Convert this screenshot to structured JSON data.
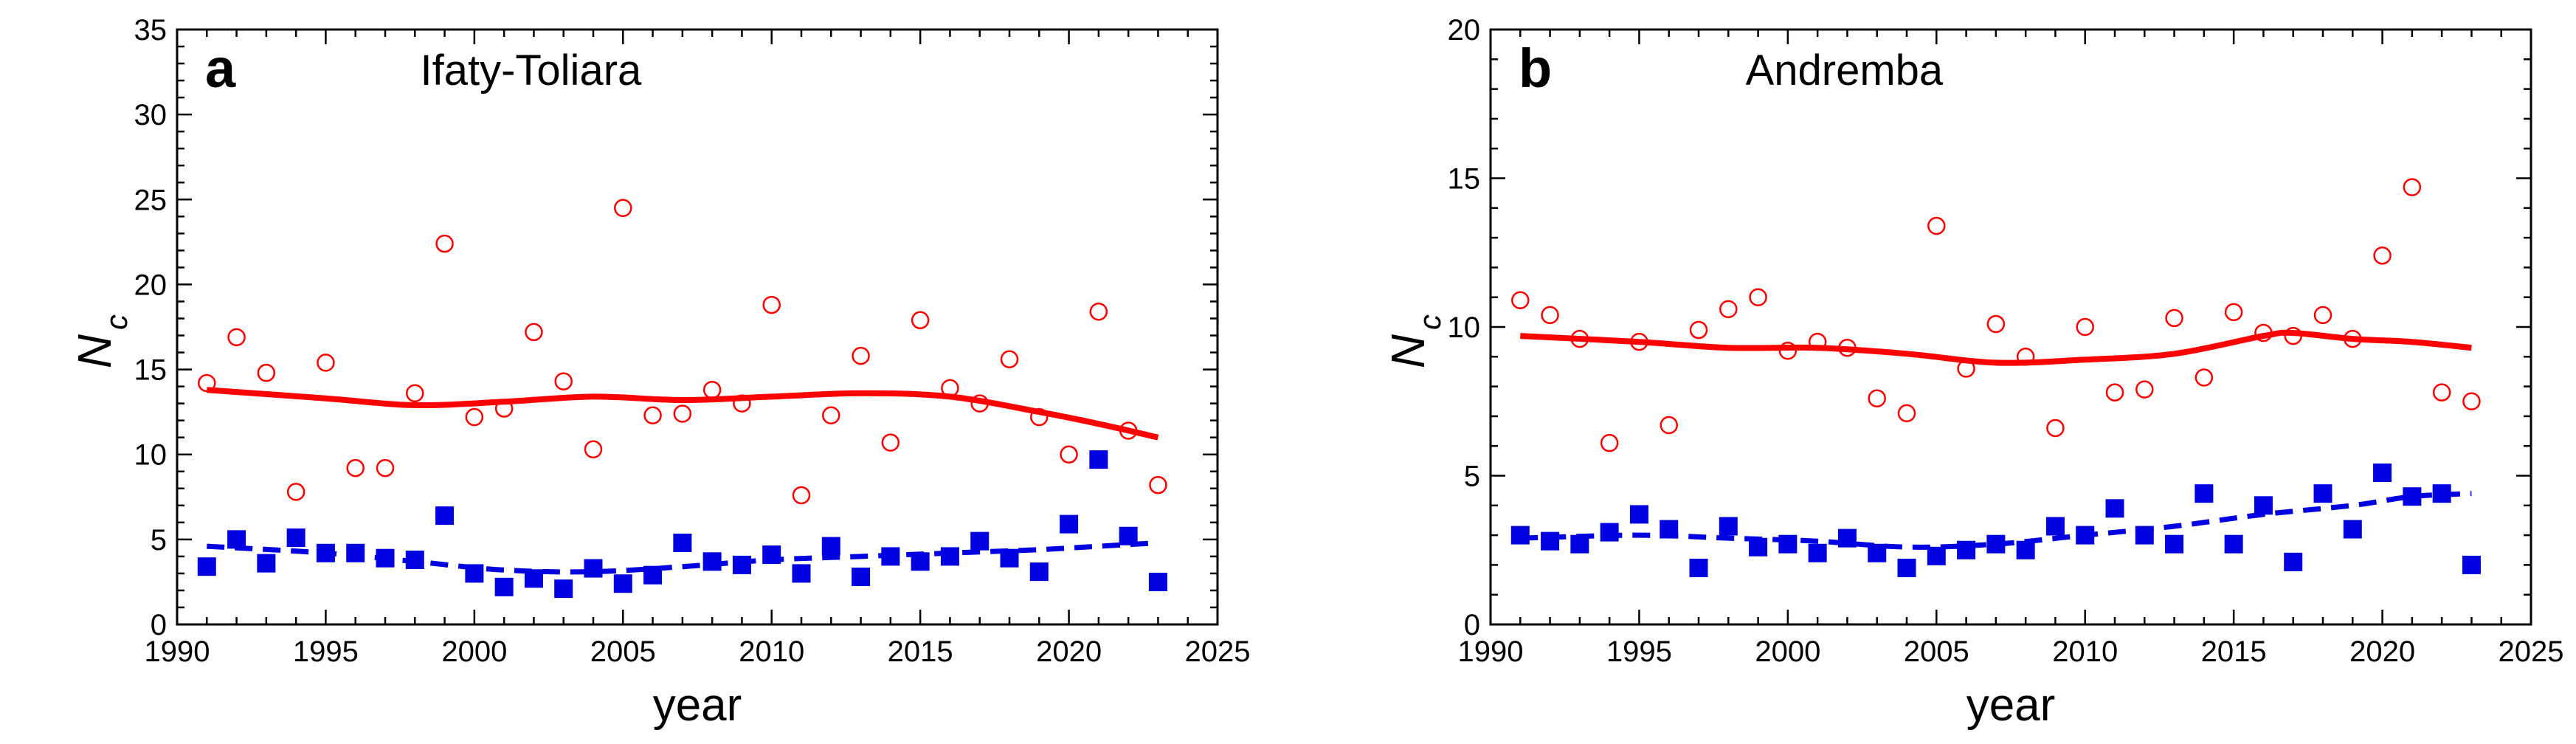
{
  "chart_data": [
    {
      "type": "scatter",
      "panel_label": "a",
      "title": "Ifaty-Toliara",
      "xlabel": "year",
      "ylabel_main": "N",
      "ylabel_sub": "c",
      "xlim": [
        1990,
        2025
      ],
      "ylim": [
        0,
        35
      ],
      "xticks": [
        1990,
        1995,
        2000,
        2005,
        2010,
        2015,
        2020,
        2025
      ],
      "yticks": [
        0,
        5,
        10,
        15,
        20,
        25,
        30,
        35
      ],
      "grid": false,
      "series": [
        {
          "marker": "open-circle",
          "color": "#ff0000",
          "x": [
            1991,
            1992,
            1993,
            1994,
            1995,
            1996,
            1997,
            1998,
            1999,
            2000,
            2001,
            2002,
            2003,
            2004,
            2005,
            2006,
            2007,
            2008,
            2009,
            2010,
            2011,
            2012,
            2013,
            2014,
            2015,
            2016,
            2017,
            2018,
            2019,
            2020,
            2021,
            2022,
            2023
          ],
          "y": [
            14.2,
            16.9,
            14.8,
            7.8,
            15.4,
            9.2,
            9.2,
            13.6,
            22.4,
            12.2,
            12.7,
            17.2,
            14.3,
            10.3,
            24.5,
            12.3,
            12.4,
            13.8,
            13.0,
            18.8,
            7.6,
            12.3,
            15.8,
            10.7,
            17.9,
            13.9,
            13.0,
            15.6,
            12.2,
            10.0,
            18.4,
            11.4,
            8.2
          ]
        },
        {
          "marker": "filled-square",
          "color": "#0000e0",
          "x": [
            1991,
            1992,
            1993,
            1994,
            1995,
            1996,
            1997,
            1998,
            1999,
            2000,
            2001,
            2002,
            2003,
            2004,
            2005,
            2006,
            2007,
            2008,
            2009,
            2010,
            2011,
            2012,
            2013,
            2014,
            2015,
            2016,
            2017,
            2018,
            2019,
            2020,
            2021,
            2022,
            2023
          ],
          "y": [
            3.4,
            5.0,
            3.6,
            5.1,
            4.2,
            4.2,
            3.9,
            3.8,
            6.4,
            3.0,
            2.2,
            2.7,
            2.1,
            3.3,
            2.4,
            2.9,
            4.8,
            3.7,
            3.5,
            4.1,
            3.0,
            4.6,
            2.8,
            4.0,
            3.7,
            4.0,
            4.9,
            3.9,
            3.1,
            5.9,
            9.7,
            5.2,
            2.5
          ]
        },
        {
          "marker": "solid-line",
          "color": "#ff0000",
          "x": [
            1991,
            1995,
            1998,
            2001,
            2004,
            2007,
            2010,
            2013,
            2016,
            2019,
            2021,
            2023
          ],
          "y": [
            13.8,
            13.3,
            12.9,
            13.1,
            13.4,
            13.2,
            13.4,
            13.6,
            13.4,
            12.5,
            11.8,
            11.0
          ]
        },
        {
          "marker": "dashed-line",
          "color": "#0000e0",
          "x": [
            1991,
            1995,
            1998,
            2001,
            2004,
            2007,
            2010,
            2013,
            2016,
            2019,
            2021,
            2023
          ],
          "y": [
            4.6,
            4.2,
            3.7,
            3.2,
            3.1,
            3.4,
            3.8,
            4.0,
            4.2,
            4.4,
            4.6,
            4.8
          ]
        }
      ]
    },
    {
      "type": "scatter",
      "panel_label": "b",
      "title": "Andremba",
      "xlabel": "year",
      "ylabel_main": "N",
      "ylabel_sub": "c",
      "xlim": [
        1990,
        2025
      ],
      "ylim": [
        0,
        20
      ],
      "xticks": [
        1990,
        1995,
        2000,
        2005,
        2010,
        2015,
        2020,
        2025
      ],
      "yticks": [
        0,
        5,
        10,
        15,
        20
      ],
      "grid": false,
      "series": [
        {
          "marker": "open-circle",
          "color": "#ff0000",
          "x": [
            1991,
            1992,
            1993,
            1994,
            1995,
            1996,
            1997,
            1998,
            1999,
            2000,
            2001,
            2002,
            2003,
            2004,
            2005,
            2006,
            2007,
            2008,
            2009,
            2010,
            2011,
            2012,
            2013,
            2014,
            2015,
            2016,
            2017,
            2018,
            2019,
            2020,
            2021,
            2022,
            2023
          ],
          "y": [
            10.9,
            10.4,
            9.6,
            6.1,
            9.5,
            6.7,
            9.9,
            10.6,
            11.0,
            9.2,
            9.5,
            9.3,
            7.6,
            7.1,
            13.4,
            8.6,
            10.1,
            9.0,
            6.6,
            10.0,
            7.8,
            7.9,
            10.3,
            8.3,
            10.5,
            9.8,
            9.7,
            10.4,
            9.6,
            12.4,
            14.7,
            7.8,
            7.5
          ]
        },
        {
          "marker": "filled-square",
          "color": "#0000e0",
          "x": [
            1991,
            1992,
            1993,
            1994,
            1995,
            1996,
            1997,
            1998,
            1999,
            2000,
            2001,
            2002,
            2003,
            2004,
            2005,
            2006,
            2007,
            2008,
            2009,
            2010,
            2011,
            2012,
            2013,
            2014,
            2015,
            2016,
            2017,
            2018,
            2019,
            2020,
            2021,
            2022,
            2023
          ],
          "y": [
            3.0,
            2.8,
            2.7,
            3.1,
            3.7,
            3.2,
            1.9,
            3.3,
            2.6,
            2.7,
            2.4,
            2.9,
            2.4,
            1.9,
            2.3,
            2.5,
            2.7,
            2.5,
            3.3,
            3.0,
            3.9,
            3.0,
            2.7,
            4.4,
            2.7,
            4.0,
            2.1,
            4.4,
            3.2,
            5.1,
            4.3,
            4.4,
            2.0
          ]
        },
        {
          "marker": "solid-line",
          "color": "#ff0000",
          "x": [
            1991,
            1995,
            1998,
            2001,
            2004,
            2007,
            2010,
            2013,
            2016,
            2017,
            2019,
            2021,
            2023
          ],
          "y": [
            9.7,
            9.5,
            9.3,
            9.3,
            9.1,
            8.8,
            8.9,
            9.1,
            9.7,
            9.8,
            9.6,
            9.5,
            9.3
          ]
        },
        {
          "marker": "dashed-line",
          "color": "#0000e0",
          "x": [
            1991,
            1995,
            1998,
            2001,
            2004,
            2007,
            2010,
            2013,
            2016,
            2019,
            2021,
            2023
          ],
          "y": [
            2.9,
            3.0,
            2.9,
            2.8,
            2.6,
            2.7,
            3.0,
            3.3,
            3.7,
            4.0,
            4.3,
            4.4
          ]
        }
      ]
    }
  ]
}
